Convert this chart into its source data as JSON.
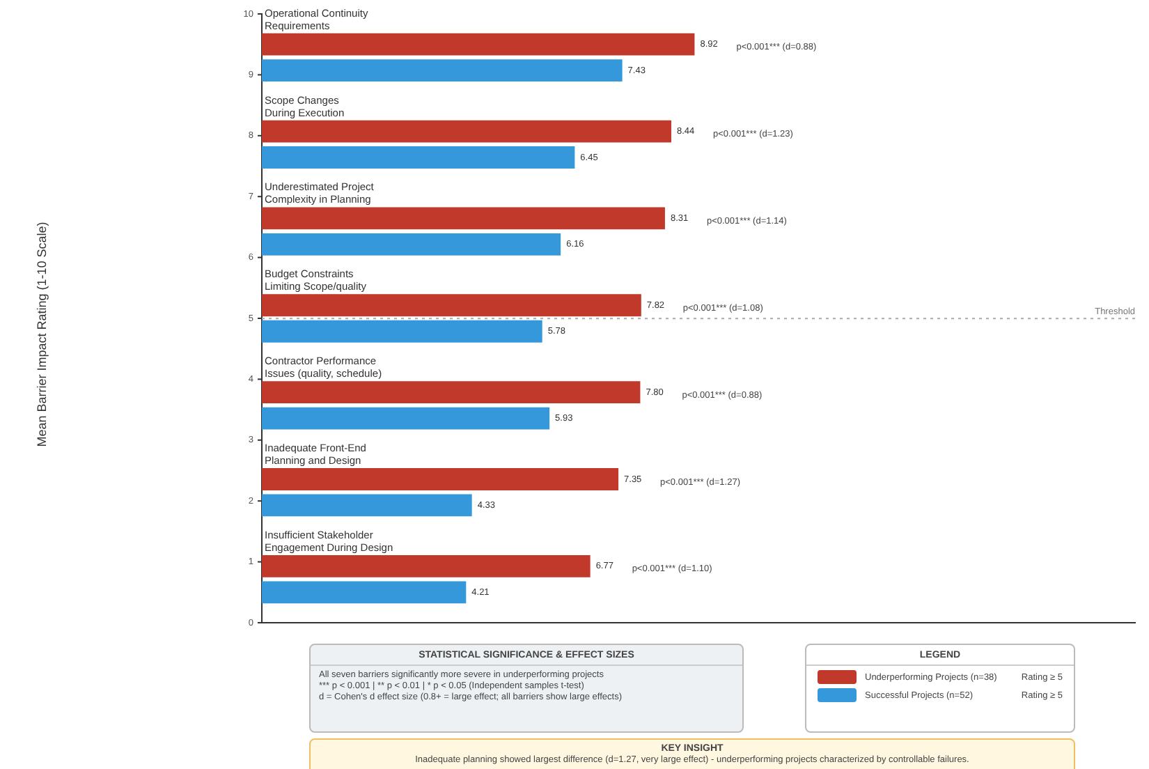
{
  "chart_data": {
    "type": "bar",
    "orientation": "horizontal",
    "categories": [
      "Operational Continuity\nRequirements",
      "Scope Changes\nDuring Execution",
      "Underestimated Project\nComplexity in Planning",
      "Budget Constraints\nLimiting Scope/quality",
      "Contractor Performance\nIssues (quality, schedule)",
      "Inadequate Front-End\nPlanning and Design",
      "Insufficient Stakeholder\nEngagement During Design"
    ],
    "series": [
      {
        "name": "Underperforming Projects (n=38)",
        "color": "#c0392b",
        "values": [
          8.92,
          8.44,
          8.31,
          7.82,
          7.8,
          7.35,
          6.77
        ],
        "value_labels": [
          "8.92",
          "8.44",
          "8.31",
          "7.82",
          "7.80",
          "7.35",
          "6.77"
        ]
      },
      {
        "name": "Successful Projects (n=52)",
        "color": "#3498db",
        "values": [
          7.43,
          6.45,
          6.16,
          5.78,
          5.93,
          4.33,
          4.21
        ],
        "value_labels": [
          "7.43",
          "6.45",
          "6.16",
          "5.78",
          "5.93",
          "4.33",
          "4.21"
        ]
      }
    ],
    "xlim": [
      0,
      18
    ],
    "tick_labels": "y",
    "legend": "bottom right",
    "legend_title": "LEGEND",
    "annotations": [
      "p<0.001*** (d=0.88)",
      "p<0.001*** (d=1.23)",
      "p<0.001*** (d=1.14)",
      "p<0.001*** (d=1.08)",
      "p<0.001*** (d=0.88)",
      "p<0.001*** (d=1.27)",
      "p<0.001*** (d=1.10)",
      "STATISTICAL SIGNIFICANCE & EFFECT SIZES",
      "All seven barriers significantly more severe in underperforming projects",
      "*** p < 0.001 | ** p < 0.01 | * p < 0.05 (Independent samples t-test)",
      "d = Cohen's d effect size (0.8+ = large effect; all barriers show large effects)",
      "Rating ≥ 5",
      "Rating ≥ 5",
      "KEY INSIGHT",
      "Inadequate planning showed largest difference (d=1.27, very large effect) - underperforming projects characterized by controllable failures.",
      "Mean Barrier Impact Rating (1-10 Scale)",
      "Threshold",
      "10",
      "9",
      "8",
      "7",
      "6",
      "5",
      "4",
      "3",
      "2",
      "1",
      "0"
    ]
  }
}
